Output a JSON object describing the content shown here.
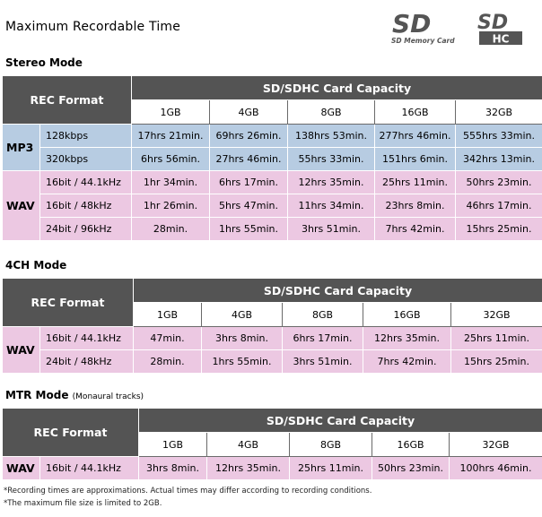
{
  "page": {
    "title": "Maximum Recordable Time",
    "logos": {
      "sd_text": "SD Memory Card",
      "sdhc_text": "HC"
    }
  },
  "sections": {
    "stereo": {
      "title": "Stereo Mode",
      "rec_format_label": "REC Format",
      "capacity_label": "SD/SDHC Card Capacity",
      "capacities": [
        "1GB",
        "4GB",
        "8GB",
        "16GB",
        "32GB"
      ],
      "groups": [
        {
          "name": "MP3",
          "rows": [
            {
              "format": "128kbps",
              "values": [
                "17hrs 21min.",
                "69hrs 26min.",
                "138hrs 53min.",
                "277hrs 46min.",
                "555hrs 33min."
              ]
            },
            {
              "format": "320kbps",
              "values": [
                "6hrs 56min.",
                "27hrs 46min.",
                "55hrs 33min.",
                "151hrs 6min.",
                "342hrs 13min."
              ]
            }
          ]
        },
        {
          "name": "WAV",
          "rows": [
            {
              "format": "16bit / 44.1kHz",
              "values": [
                "1hr 34min.",
                "6hrs 17min.",
                "12hrs 35min.",
                "25hrs 11min.",
                "50hrs 23min."
              ]
            },
            {
              "format": "16bit / 48kHz",
              "values": [
                "1hr 26min.",
                "5hrs 47min.",
                "11hrs 34min.",
                "23hrs 8min.",
                "46hrs 17min."
              ]
            },
            {
              "format": "24bit / 96kHz",
              "values": [
                "28min.",
                "1hrs 55min.",
                "3hrs 51min.",
                "7hrs 42min.",
                "15hrs 25min."
              ]
            }
          ]
        }
      ]
    },
    "fourch": {
      "title": "4CH Mode",
      "rec_format_label": "REC Format",
      "capacity_label": "SD/SDHC Card Capacity",
      "capacities": [
        "1GB",
        "4GB",
        "8GB",
        "16GB",
        "32GB"
      ],
      "groups": [
        {
          "name": "WAV",
          "rows": [
            {
              "format": "16bit / 44.1kHz",
              "values": [
                "47min.",
                "3hrs 8min.",
                "6hrs 17min.",
                "12hrs 35min.",
                "25hrs 11min."
              ]
            },
            {
              "format": "24bit / 48kHz",
              "values": [
                "28min.",
                "1hrs 55min.",
                "3hrs 51min.",
                "7hrs 42min.",
                "15hrs 25min."
              ]
            }
          ]
        }
      ]
    },
    "mtr": {
      "title": "MTR Mode",
      "subtitle": "(Monaural tracks)",
      "rec_format_label": "REC Format",
      "capacity_label": "SD/SDHC Card Capacity",
      "capacities": [
        "1GB",
        "4GB",
        "8GB",
        "16GB",
        "32GB"
      ],
      "groups": [
        {
          "name": "WAV",
          "rows": [
            {
              "format": "16bit / 44.1kHz",
              "values": [
                "3hrs 8min.",
                "12hrs 35min.",
                "25hrs 11min.",
                "50hrs 23min.",
                "100hrs 46min."
              ]
            }
          ]
        }
      ]
    }
  },
  "notes": [
    "*Recording times are approximations. Actual times may differ according to recording conditions.",
    "*The maximum file size is limited to 2GB."
  ],
  "colors": {
    "header_dark": "#545454",
    "mp3_row": "#b7cce2",
    "wav_row": "#ecc8e2"
  }
}
